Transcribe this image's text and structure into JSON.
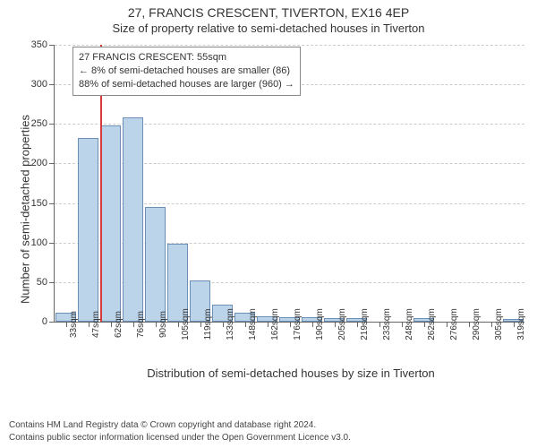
{
  "titles": {
    "line1": "27, FRANCIS CRESCENT, TIVERTON, EX16 4EP",
    "line2": "Size of property relative to semi-detached houses in Tiverton"
  },
  "axes": {
    "ylabel": "Number of semi-detached properties",
    "xlabel": "Distribution of semi-detached houses by size in Tiverton"
  },
  "legend": {
    "line1": "27 FRANCIS CRESCENT: 55sqm",
    "line2": "← 8% of semi-detached houses are smaller (86)",
    "line3": "88% of semi-detached houses are larger (960) →"
  },
  "footer": {
    "line1": "Contains HM Land Registry data © Crown copyright and database right 2024.",
    "line2": "Contains public sector information licensed under the Open Government Licence v3.0."
  },
  "chart": {
    "type": "histogram",
    "ylim": [
      0,
      350
    ],
    "ytick_step": 50,
    "yticks": [
      0,
      50,
      100,
      150,
      200,
      250,
      300,
      350
    ],
    "marker_value": 55,
    "marker_color": "#d63a3a",
    "bar_fill": "#bcd4ea",
    "bar_stroke": "#6b8fb5",
    "grid_color": "#cccccc",
    "axis_color": "#666666",
    "background_color": "#ffffff",
    "categories": [
      "33sqm",
      "47sqm",
      "62sqm",
      "76sqm",
      "90sqm",
      "105sqm",
      "119sqm",
      "133sqm",
      "148sqm",
      "162sqm",
      "176sqm",
      "190sqm",
      "205sqm",
      "219sqm",
      "233sqm",
      "248sqm",
      "262sqm",
      "276sqm",
      "290sqm",
      "305sqm",
      "319sqm"
    ],
    "values": [
      11,
      232,
      248,
      258,
      145,
      98,
      52,
      22,
      11,
      7,
      6,
      6,
      4,
      4,
      0,
      0,
      4,
      0,
      0,
      0,
      3
    ],
    "bar_width_ratio": 0.92
  },
  "fonts": {
    "title_size_pt": 14,
    "subtitle_size_pt": 13,
    "label_size_pt": 13,
    "tick_size_pt": 11,
    "xtick_size_pt": 10,
    "legend_size_pt": 11,
    "footer_size_pt": 10
  }
}
